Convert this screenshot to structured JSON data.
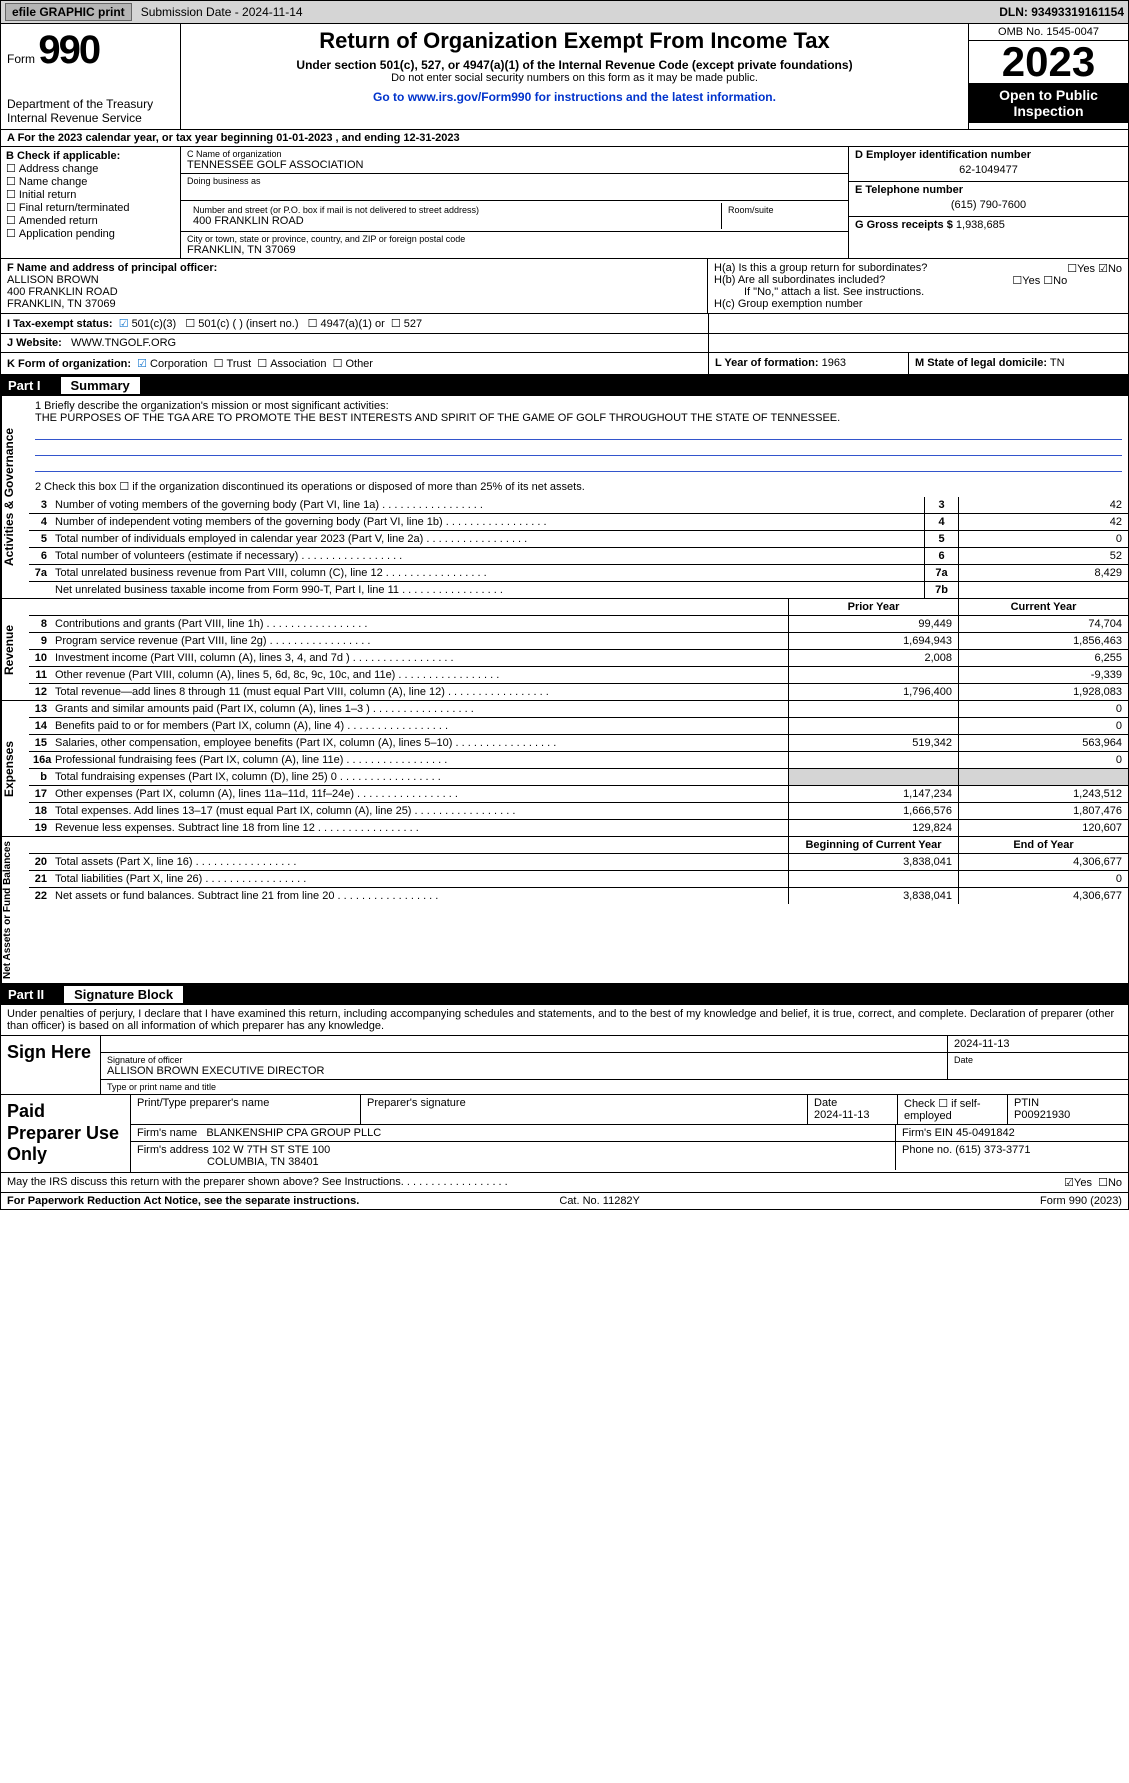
{
  "topbar": {
    "efile": "efile GRAPHIC print",
    "submission": "Submission Date - 2024-11-14",
    "dln": "DLN: 93493319161154"
  },
  "header": {
    "form": "Form",
    "num": "990",
    "dept": "Department of the Treasury",
    "irs": "Internal Revenue Service",
    "title": "Return of Organization Exempt From Income Tax",
    "sub": "Under section 501(c), 527, or 4947(a)(1) of the Internal Revenue Code (except private foundations)",
    "nossl": "Do not enter social security numbers on this form as it may be made public.",
    "goto": "Go to www.irs.gov/Form990 for instructions and the latest information.",
    "omb": "OMB No. 1545-0047",
    "year": "2023",
    "open": "Open to Public Inspection"
  },
  "A": {
    "text": "A For the 2023 calendar year, or tax year beginning 01-01-2023   , and ending 12-31-2023"
  },
  "B": {
    "label": "B Check if applicable:",
    "items": [
      "Address change",
      "Name change",
      "Initial return",
      "Final return/terminated",
      "Amended return",
      "Application pending"
    ]
  },
  "C": {
    "nameLbl": "C Name of organization",
    "name": "TENNESSEE GOLF ASSOCIATION",
    "dba": "Doing business as",
    "streetLbl": "Number and street (or P.O. box if mail is not delivered to street address)",
    "room": "Room/suite",
    "street": "400 FRANKLIN ROAD",
    "cityLbl": "City or town, state or province, country, and ZIP or foreign postal code",
    "city": "FRANKLIN, TN  37069"
  },
  "D": {
    "lbl": "D Employer identification number",
    "val": "62-1049477",
    "telLbl": "E Telephone number",
    "tel": "(615) 790-7600",
    "grossLbl": "G Gross receipts $",
    "gross": "1,938,685"
  },
  "F": {
    "lbl": "F  Name and address of principal officer:",
    "name": "ALLISON BROWN",
    "addr1": "400 FRANKLIN ROAD",
    "addr2": "FRANKLIN, TN  37069"
  },
  "H": {
    "a": "H(a)  Is this a group return for subordinates?",
    "b": "H(b)  Are all subordinates included?",
    "note": "If \"No,\" attach a list. See instructions.",
    "c": "H(c)  Group exemption number"
  },
  "I": {
    "lbl": "I    Tax-exempt status:",
    "c3": "501(c)(3)",
    "c": "501(c) (  ) (insert no.)",
    "a": "4947(a)(1) or",
    "s": "527"
  },
  "J": {
    "lbl": "J    Website:",
    "val": "WWW.TNGOLF.ORG"
  },
  "K": {
    "lbl": "K Form of organization:",
    "corp": "Corporation",
    "trust": "Trust",
    "assoc": "Association",
    "other": "Other"
  },
  "L": {
    "lbl": "L Year of formation:",
    "val": "1963"
  },
  "M": {
    "lbl": "M State of legal domicile:",
    "val": "TN"
  },
  "part1": {
    "num": "Part I",
    "title": "Summary"
  },
  "mission": {
    "q": "1   Briefly describe the organization's mission or most significant activities:",
    "a": "THE PURPOSES OF THE TGA ARE TO PROMOTE THE BEST INTERESTS AND SPIRIT OF THE GAME OF GOLF THROUGHOUT THE STATE OF TENNESSEE."
  },
  "line2": "2   Check this box ☐  if the organization discontinued its operations or disposed of more than 25% of its net assets.",
  "gov": [
    {
      "n": "3",
      "t": "Number of voting members of the governing body (Part VI, line 1a)",
      "b": "3",
      "v": "42"
    },
    {
      "n": "4",
      "t": "Number of independent voting members of the governing body (Part VI, line 1b)",
      "b": "4",
      "v": "42"
    },
    {
      "n": "5",
      "t": "Total number of individuals employed in calendar year 2023 (Part V, line 2a)",
      "b": "5",
      "v": "0"
    },
    {
      "n": "6",
      "t": "Total number of volunteers (estimate if necessary)",
      "b": "6",
      "v": "52"
    },
    {
      "n": "7a",
      "t": "Total unrelated business revenue from Part VIII, column (C), line 12",
      "b": "7a",
      "v": "8,429"
    },
    {
      "n": "",
      "t": "Net unrelated business taxable income from Form 990-T, Part I, line 11",
      "b": "7b",
      "v": ""
    },
    {
      "n": "b",
      "t": "",
      "b": "",
      "v": ""
    }
  ],
  "hdrPY": "Prior Year",
  "hdrCY": "Current Year",
  "rev": [
    {
      "n": "8",
      "t": "Contributions and grants (Part VIII, line 1h)",
      "p": "99,449",
      "c": "74,704"
    },
    {
      "n": "9",
      "t": "Program service revenue (Part VIII, line 2g)",
      "p": "1,694,943",
      "c": "1,856,463"
    },
    {
      "n": "10",
      "t": "Investment income (Part VIII, column (A), lines 3, 4, and 7d )",
      "p": "2,008",
      "c": "6,255"
    },
    {
      "n": "11",
      "t": "Other revenue (Part VIII, column (A), lines 5, 6d, 8c, 9c, 10c, and 11e)",
      "p": "",
      "c": "-9,339"
    },
    {
      "n": "12",
      "t": "Total revenue—add lines 8 through 11 (must equal Part VIII, column (A), line 12)",
      "p": "1,796,400",
      "c": "1,928,083"
    }
  ],
  "exp": [
    {
      "n": "13",
      "t": "Grants and similar amounts paid (Part IX, column (A), lines 1–3 )",
      "p": "",
      "c": "0"
    },
    {
      "n": "14",
      "t": "Benefits paid to or for members (Part IX, column (A), line 4)",
      "p": "",
      "c": "0"
    },
    {
      "n": "15",
      "t": "Salaries, other compensation, employee benefits (Part IX, column (A), lines 5–10)",
      "p": "519,342",
      "c": "563,964"
    },
    {
      "n": "16a",
      "t": "Professional fundraising fees (Part IX, column (A), line 11e)",
      "p": "",
      "c": "0"
    },
    {
      "n": "b",
      "t": "Total fundraising expenses (Part IX, column (D), line 25) 0",
      "p": "gray",
      "c": "gray"
    },
    {
      "n": "17",
      "t": "Other expenses (Part IX, column (A), lines 11a–11d, 11f–24e)",
      "p": "1,147,234",
      "c": "1,243,512"
    },
    {
      "n": "18",
      "t": "Total expenses. Add lines 13–17 (must equal Part IX, column (A), line 25)",
      "p": "1,666,576",
      "c": "1,807,476"
    },
    {
      "n": "19",
      "t": "Revenue less expenses. Subtract line 18 from line 12",
      "p": "129,824",
      "c": "120,607"
    }
  ],
  "hdrBY": "Beginning of Current Year",
  "hdrEY": "End of Year",
  "net": [
    {
      "n": "20",
      "t": "Total assets (Part X, line 16)",
      "p": "3,838,041",
      "c": "4,306,677"
    },
    {
      "n": "21",
      "t": "Total liabilities (Part X, line 26)",
      "p": "",
      "c": "0"
    },
    {
      "n": "22",
      "t": "Net assets or fund balances. Subtract line 21 from line 20",
      "p": "3,838,041",
      "c": "4,306,677"
    }
  ],
  "sideLabels": {
    "gov": "Activities & Governance",
    "rev": "Revenue",
    "exp": "Expenses",
    "net": "Net Assets or Fund Balances"
  },
  "part2": {
    "num": "Part II",
    "title": "Signature Block"
  },
  "decl": "Under penalties of perjury, I declare that I have examined this return, including accompanying schedules and statements, and to the best of my knowledge and belief, it is true, correct, and complete. Declaration of preparer (other than officer) is based on all information of which preparer has any knowledge.",
  "sign": {
    "lbl": "Sign Here",
    "sigoff": "Signature of officer",
    "date1": "2024-11-13",
    "name": "ALLISON BROWN  EXECUTIVE DIRECTOR",
    "type": "Type or print name and title",
    "dateLbl": "Date"
  },
  "paid": {
    "lbl": "Paid Preparer Use Only",
    "h": [
      "Print/Type preparer's name",
      "Preparer's signature",
      "Date",
      "Check ☐ if self-employed",
      "PTIN"
    ],
    "r1": [
      "",
      "",
      "2024-11-13",
      "",
      "P00921930"
    ],
    "firmLbl": "Firm's name",
    "firm": "BLANKENSHIP CPA GROUP PLLC",
    "einLbl": "Firm's EIN",
    "ein": "45-0491842",
    "addrLbl": "Firm's address",
    "addr": "102 W 7TH ST STE 100",
    "addr2": "COLUMBIA, TN  38401",
    "phoneLbl": "Phone no.",
    "phone": "(615) 373-3771"
  },
  "discuss": "May the IRS discuss this return with the preparer shown above? See Instructions.",
  "footer": {
    "l": "For Paperwork Reduction Act Notice, see the separate instructions.",
    "m": "Cat. No. 11282Y",
    "r": "Form 990 (2023)"
  },
  "yesno": {
    "yes": "Yes",
    "no": "No"
  }
}
